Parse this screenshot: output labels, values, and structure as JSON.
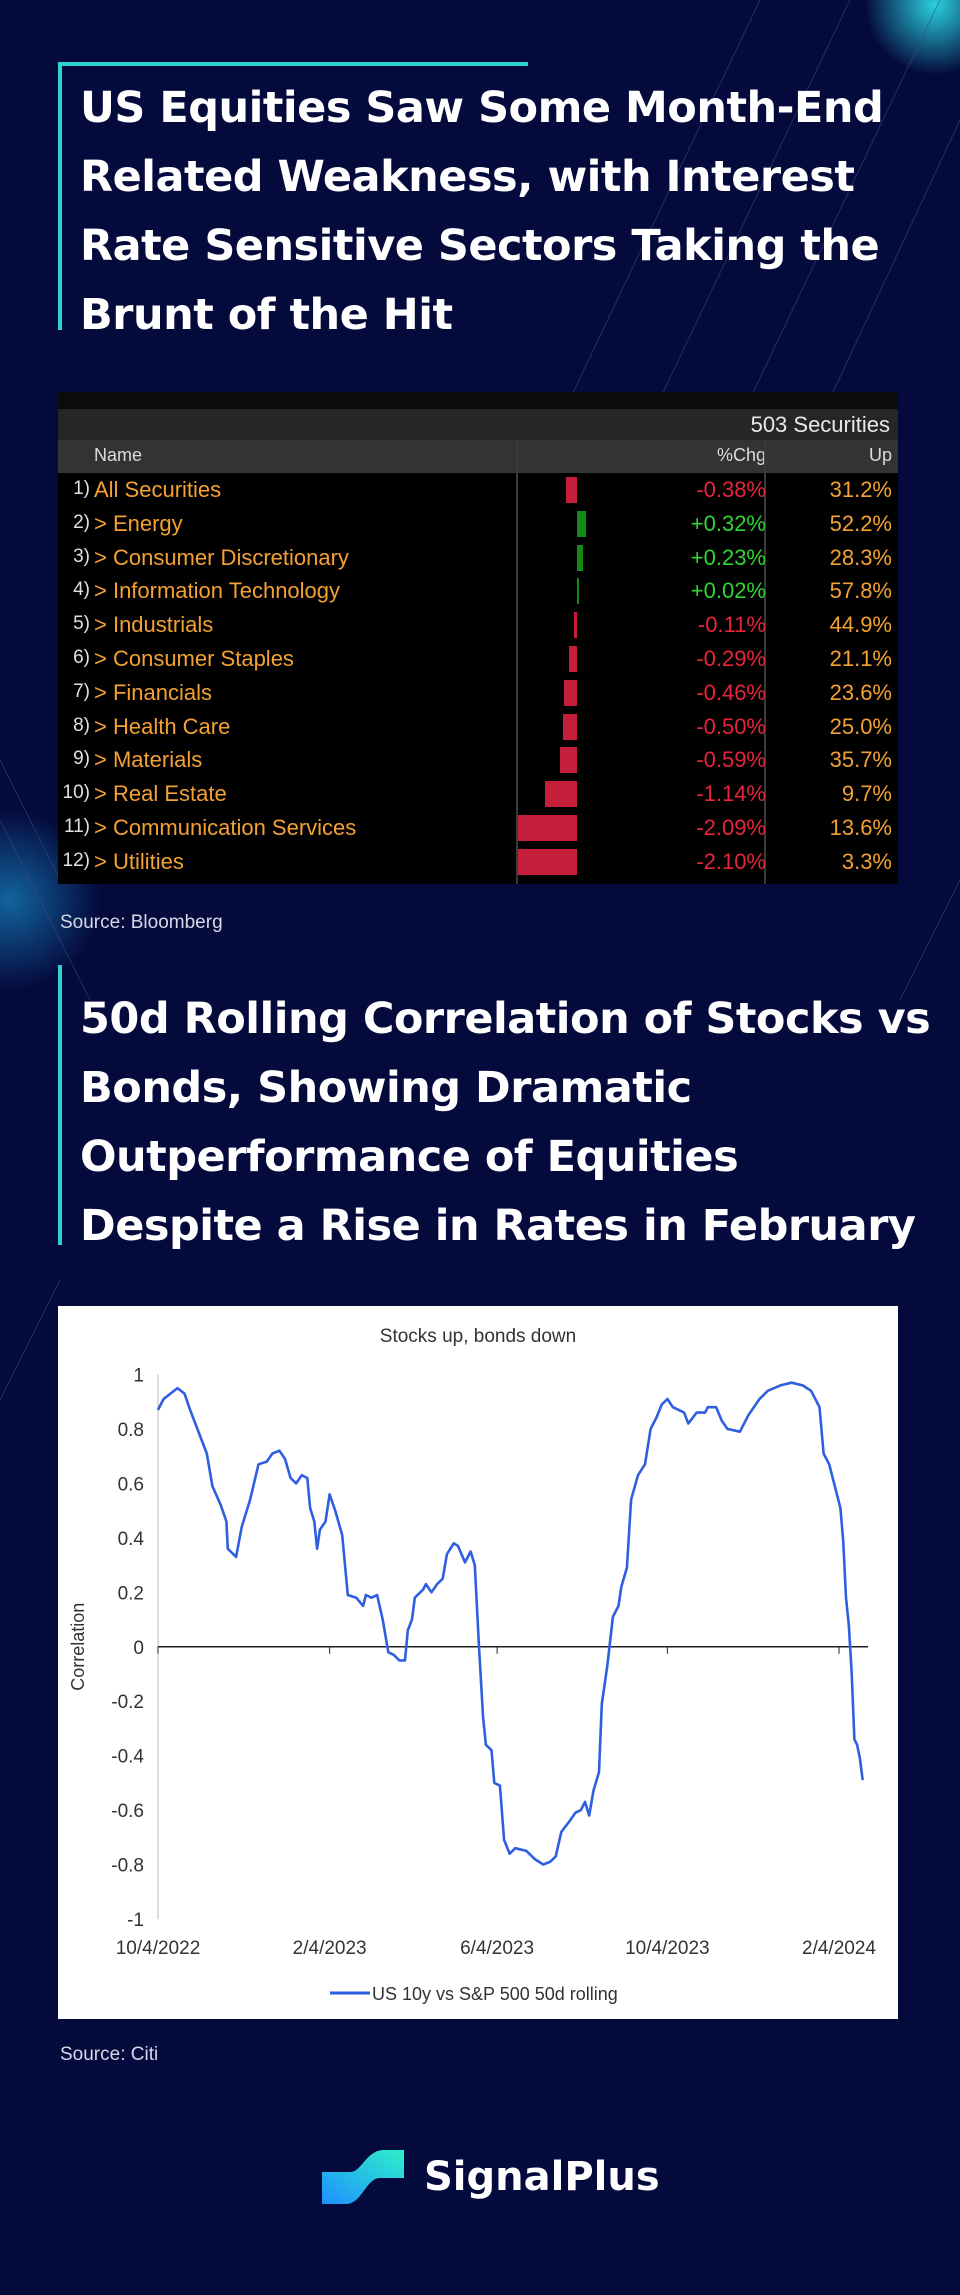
{
  "heading1": {
    "lines": [
      "US Equities Saw Some Month-End",
      "Related Weakness, with Interest",
      "Rate Sensitive Sectors Taking the",
      "Brunt of the Hit"
    ]
  },
  "table": {
    "securities_count": "503 Securities",
    "columns": {
      "name": "Name",
      "chg": "%Chg",
      "up": "Up"
    },
    "rows": [
      {
        "num": "1)",
        "name": "All Securities",
        "chg": "-0.38%",
        "chg_value": -0.38,
        "up": "31.2%"
      },
      {
        "num": "2)",
        "name": "> Energy",
        "chg": "+0.32%",
        "chg_value": 0.32,
        "up": "52.2%"
      },
      {
        "num": "3)",
        "name": "> Consumer Discretionary",
        "chg": "+0.23%",
        "chg_value": 0.23,
        "up": "28.3%"
      },
      {
        "num": "4)",
        "name": "> Information Technology",
        "chg": "+0.02%",
        "chg_value": 0.02,
        "up": "57.8%"
      },
      {
        "num": "5)",
        "name": "> Industrials",
        "chg": "-0.11%",
        "chg_value": -0.11,
        "up": "44.9%"
      },
      {
        "num": "6)",
        "name": "> Consumer Staples",
        "chg": "-0.29%",
        "chg_value": -0.29,
        "up": "21.1%"
      },
      {
        "num": "7)",
        "name": "> Financials",
        "chg": "-0.46%",
        "chg_value": -0.46,
        "up": "23.6%"
      },
      {
        "num": "8)",
        "name": "> Health Care",
        "chg": "-0.50%",
        "chg_value": -0.5,
        "up": "25.0%"
      },
      {
        "num": "9)",
        "name": "> Materials",
        "chg": "-0.59%",
        "chg_value": -0.59,
        "up": "35.7%"
      },
      {
        "num": "10)",
        "name": "> Real Estate",
        "chg": "-1.14%",
        "chg_value": -1.14,
        "up": "9.7%"
      },
      {
        "num": "11)",
        "name": "> Communication Services",
        "chg": "-2.09%",
        "chg_value": -2.09,
        "up": "13.6%"
      },
      {
        "num": "12)",
        "name": "> Utilities",
        "chg": "-2.10%",
        "chg_value": -2.1,
        "up": "3.3%"
      }
    ],
    "colors": {
      "positive": "#2fd52f",
      "negative": "#e8243a",
      "bar_positive": "#138a13",
      "bar_negative": "#c41e3a"
    }
  },
  "source1": "Source: Bloomberg",
  "heading2": {
    "lines": [
      "50d Rolling Correlation of Stocks vs",
      "Bonds, Showing Dramatic",
      "Outperformance of Equities",
      "Despite a Rise in Rates in February"
    ]
  },
  "chart_data": {
    "type": "line",
    "title": "Stocks up, bonds down",
    "xlabel": "",
    "ylabel": "Correlation",
    "ylim": [
      -1,
      1
    ],
    "yticks": [
      1,
      0.8,
      0.6,
      0.4,
      0.2,
      0,
      -0.2,
      -0.4,
      -0.6,
      -0.8,
      -1
    ],
    "ytick_labels": [
      "1",
      "0.8",
      "0.6",
      "0.4",
      "0.2",
      "0",
      "-0.2",
      "-0.4",
      "-0.6",
      "-0.8",
      "-1"
    ],
    "x_unit": "days since 10/4/2022",
    "xticks": [
      0,
      123,
      243,
      365,
      488
    ],
    "xtick_labels": [
      "10/4/2022",
      "2/4/2023",
      "6/4/2023",
      "10/4/2023",
      "2/4/2024"
    ],
    "legend": "bottom",
    "series": [
      {
        "name": "US 10y vs S&P 500 50d rolling",
        "color": "#2f5fe0",
        "points": [
          [
            0,
            0.87
          ],
          [
            4,
            0.91
          ],
          [
            14,
            0.95
          ],
          [
            19,
            0.93
          ],
          [
            23,
            0.87
          ],
          [
            35,
            0.71
          ],
          [
            39,
            0.59
          ],
          [
            45,
            0.52
          ],
          [
            49,
            0.46
          ],
          [
            50,
            0.36
          ],
          [
            56,
            0.33
          ],
          [
            60,
            0.44
          ],
          [
            66,
            0.54
          ],
          [
            72,
            0.67
          ],
          [
            78,
            0.68
          ],
          [
            82,
            0.71
          ],
          [
            87,
            0.72
          ],
          [
            91,
            0.69
          ],
          [
            95,
            0.62
          ],
          [
            99,
            0.6
          ],
          [
            103,
            0.63
          ],
          [
            107,
            0.62
          ],
          [
            109,
            0.51
          ],
          [
            112,
            0.46
          ],
          [
            114,
            0.36
          ],
          [
            116,
            0.43
          ],
          [
            120,
            0.46
          ],
          [
            123,
            0.56
          ],
          [
            127,
            0.5
          ],
          [
            132,
            0.41
          ],
          [
            136,
            0.19
          ],
          [
            142,
            0.18
          ],
          [
            147,
            0.15
          ],
          [
            149,
            0.19
          ],
          [
            153,
            0.18
          ],
          [
            157,
            0.19
          ],
          [
            161,
            0.1
          ],
          [
            165,
            -0.02
          ],
          [
            169,
            -0.03
          ],
          [
            173,
            -0.05
          ],
          [
            177,
            -0.05
          ],
          [
            179,
            0.06
          ],
          [
            182,
            0.1
          ],
          [
            184,
            0.18
          ],
          [
            190,
            0.21
          ],
          [
            192,
            0.23
          ],
          [
            196,
            0.2
          ],
          [
            200,
            0.23
          ],
          [
            204,
            0.25
          ],
          [
            207,
            0.34
          ],
          [
            212,
            0.38
          ],
          [
            215,
            0.37
          ],
          [
            220,
            0.31
          ],
          [
            224,
            0.35
          ],
          [
            227,
            0.3
          ],
          [
            230,
            0.0
          ],
          [
            233,
            -0.26
          ],
          [
            235,
            -0.36
          ],
          [
            239,
            -0.38
          ],
          [
            241,
            -0.5
          ],
          [
            245,
            -0.51
          ],
          [
            248,
            -0.71
          ],
          [
            252,
            -0.76
          ],
          [
            256,
            -0.74
          ],
          [
            264,
            -0.75
          ],
          [
            270,
            -0.78
          ],
          [
            276,
            -0.8
          ],
          [
            281,
            -0.79
          ],
          [
            285,
            -0.77
          ],
          [
            289,
            -0.68
          ],
          [
            295,
            -0.64
          ],
          [
            299,
            -0.61
          ],
          [
            303,
            -0.6
          ],
          [
            306,
            -0.57
          ],
          [
            309,
            -0.62
          ],
          [
            312,
            -0.53
          ],
          [
            316,
            -0.46
          ],
          [
            318,
            -0.21
          ],
          [
            322,
            -0.07
          ],
          [
            326,
            0.11
          ],
          [
            330,
            0.15
          ],
          [
            332,
            0.22
          ],
          [
            336,
            0.29
          ],
          [
            339,
            0.54
          ],
          [
            344,
            0.63
          ],
          [
            349,
            0.67
          ],
          [
            353,
            0.8
          ],
          [
            357,
            0.84
          ],
          [
            361,
            0.89
          ],
          [
            365,
            0.91
          ],
          [
            369,
            0.88
          ],
          [
            377,
            0.86
          ],
          [
            380,
            0.82
          ],
          [
            386,
            0.86
          ],
          [
            392,
            0.86
          ],
          [
            394,
            0.88
          ],
          [
            400,
            0.88
          ],
          [
            404,
            0.83
          ],
          [
            408,
            0.8
          ],
          [
            417,
            0.79
          ],
          [
            423,
            0.85
          ],
          [
            431,
            0.91
          ],
          [
            437,
            0.94
          ],
          [
            446,
            0.96
          ],
          [
            454,
            0.97
          ],
          [
            462,
            0.96
          ],
          [
            468,
            0.94
          ],
          [
            474,
            0.88
          ],
          [
            477,
            0.71
          ],
          [
            481,
            0.67
          ],
          [
            485,
            0.59
          ],
          [
            489,
            0.51
          ],
          [
            491,
            0.39
          ],
          [
            493,
            0.18
          ],
          [
            495,
            0.08
          ],
          [
            497,
            -0.09
          ],
          [
            499,
            -0.34
          ],
          [
            501,
            -0.36
          ],
          [
            503,
            -0.41
          ],
          [
            505,
            -0.49
          ]
        ]
      }
    ]
  },
  "source2": "Source: Citi",
  "brand": {
    "name": "SignalPlus",
    "accent": "#2fd3c8"
  }
}
